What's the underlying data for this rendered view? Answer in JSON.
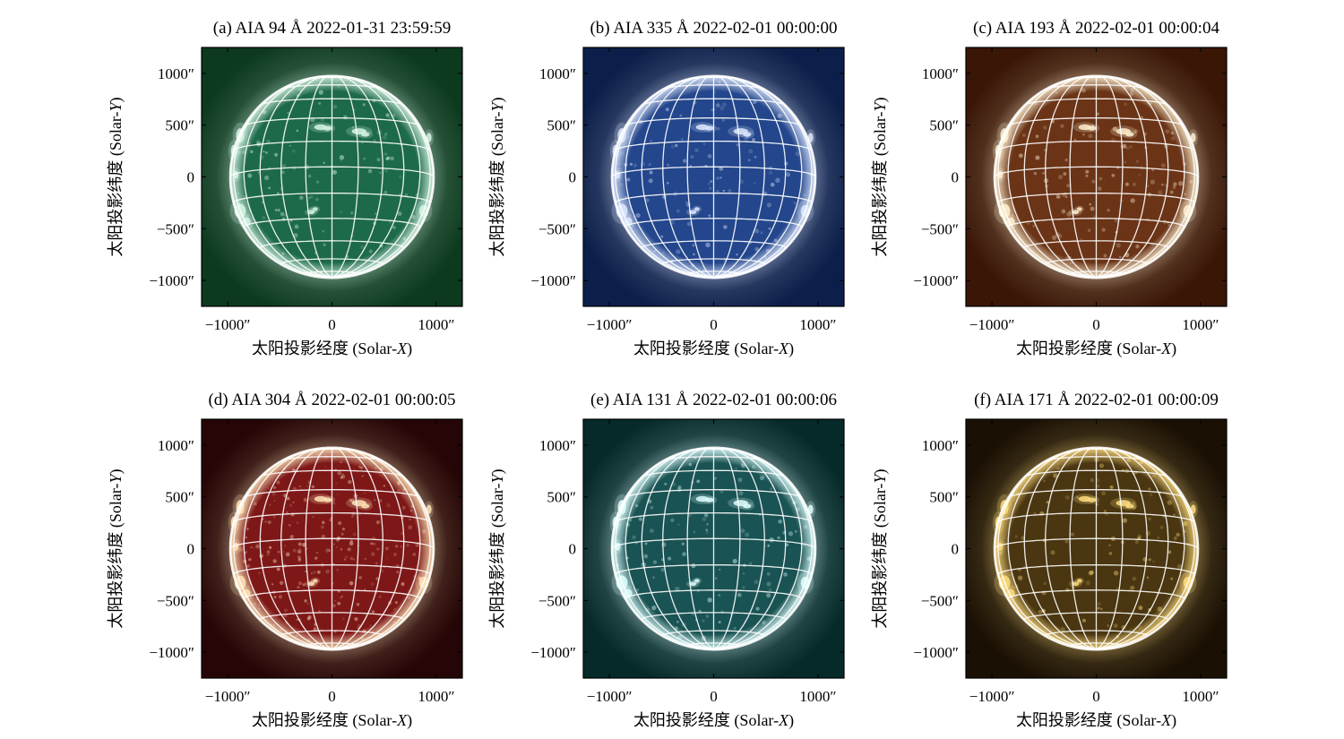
{
  "figure": {
    "panels": [
      {
        "title": "(a) AIA 94 Å 2022-01-31 23:59:59",
        "channel": "94",
        "bg_color": "#0d3a1f",
        "disk_color": "#1d6a4a",
        "bright_color": "#d8f5e6",
        "xlabel": "太阳投影经度 (Solar-X)",
        "ylabel": "太阳投影纬度 (Solar-Y)"
      },
      {
        "title": "(b) AIA 335 Å 2022-02-01 00:00:00",
        "channel": "335",
        "bg_color": "#0c1f4a",
        "disk_color": "#23468c",
        "bright_color": "#dfeaff",
        "xlabel": "太阳投影经度 (Solar-X)",
        "ylabel": "太阳投影纬度 (Solar-Y)"
      },
      {
        "title": "(c) AIA 193 Å 2022-02-01 00:00:04",
        "channel": "193",
        "bg_color": "#3a1606",
        "disk_color": "#6b3417",
        "bright_color": "#fff0d0",
        "xlabel": "太阳投影经度 (Solar-X)",
        "ylabel": "太阳投影纬度 (Solar-Y)"
      },
      {
        "title": "(d) AIA 304 Å 2022-02-01 00:00:05",
        "channel": "304",
        "bg_color": "#250505",
        "disk_color": "#7e1818",
        "bright_color": "#ffe4b8",
        "xlabel": "太阳投影经度 (Solar-X)",
        "ylabel": "太阳投影纬度 (Solar-Y)"
      },
      {
        "title": "(e) AIA 131 Å 2022-02-01 00:00:06",
        "channel": "131",
        "bg_color": "#062a2a",
        "disk_color": "#1a5353",
        "bright_color": "#e0ffff",
        "xlabel": "太阳投影经度 (Solar-X)",
        "ylabel": "太阳投影纬度 (Solar-Y)"
      },
      {
        "title": "(f) AIA 171 Å 2022-02-01 00:00:09",
        "channel": "171",
        "bg_color": "#1a1004",
        "disk_color": "#4a3610",
        "bright_color": "#ffdd80",
        "xlabel": "太阳投影经度 (Solar-X)",
        "ylabel": "太阳投影纬度 (Solar-Y)"
      }
    ],
    "x_ticks": [
      "−1000″",
      "0",
      "1000″"
    ],
    "y_ticks": [
      "1000″",
      "500″",
      "0",
      "−500″",
      "−1000″"
    ],
    "grid_color": "#ffffff"
  }
}
